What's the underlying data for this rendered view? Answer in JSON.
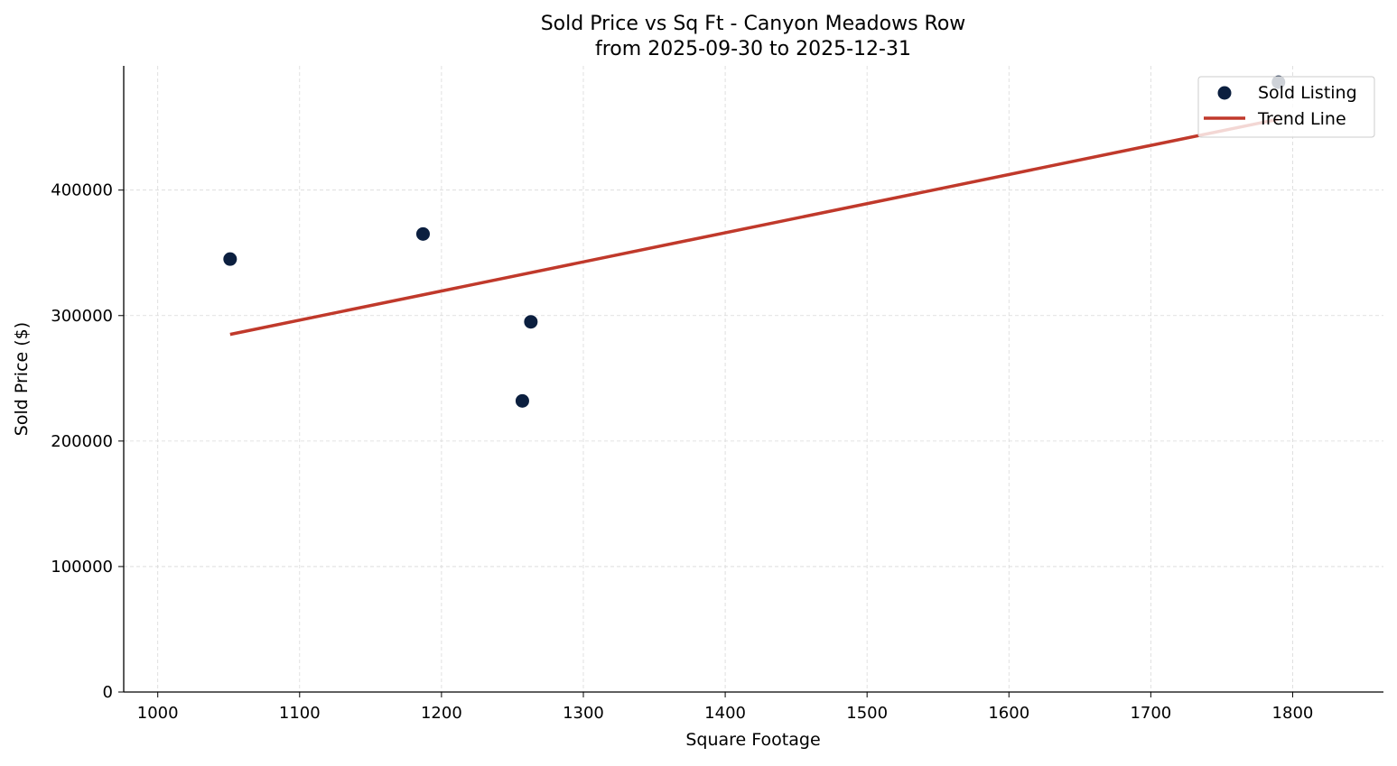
{
  "chart_data": {
    "type": "scatter",
    "title": "Sold Price vs Sq Ft - Canyon Meadows Row",
    "subtitle": "from 2025-09-30 to 2025-12-31",
    "xlabel": "Square Footage",
    "ylabel": "Sold Price ($)",
    "xlim": [
      976,
      1864
    ],
    "ylim": [
      0,
      499000
    ],
    "xticks": [
      1000,
      1100,
      1200,
      1300,
      1400,
      1500,
      1600,
      1700,
      1800
    ],
    "yticks": [
      0,
      100000,
      200000,
      300000,
      400000
    ],
    "grid": true,
    "legend_position": "top-right",
    "series": [
      {
        "name": "Sold Listing",
        "type": "scatter",
        "color": "#0b1f3f",
        "points": [
          {
            "x": 1051,
            "y": 345000
          },
          {
            "x": 1187,
            "y": 365000
          },
          {
            "x": 1263,
            "y": 295000
          },
          {
            "x": 1257,
            "y": 232000
          },
          {
            "x": 1790,
            "y": 486000
          }
        ]
      },
      {
        "name": "Trend Line",
        "type": "line",
        "color": "#c0392b",
        "points": [
          {
            "x": 1051,
            "y": 285000
          },
          {
            "x": 1790,
            "y": 456500
          }
        ]
      }
    ]
  }
}
